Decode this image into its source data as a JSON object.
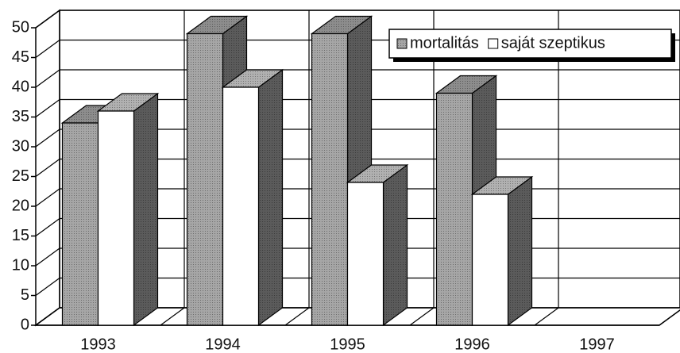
{
  "chart_data": {
    "type": "bar3d",
    "categories": [
      "1993",
      "1994",
      "1995",
      "1996",
      "1997"
    ],
    "series": [
      {
        "name": "mortalitás",
        "color": "#a6a6a6",
        "values": [
          34,
          49,
          49,
          39,
          null
        ]
      },
      {
        "name": "saját szeptikus",
        "color": "#ffffff",
        "values": [
          36,
          40,
          24,
          22,
          null
        ]
      }
    ],
    "ylim": [
      0,
      50
    ],
    "yticks": [
      0,
      5,
      10,
      15,
      20,
      25,
      30,
      35,
      40,
      45,
      50
    ],
    "grid": true,
    "legend": "top-right"
  }
}
